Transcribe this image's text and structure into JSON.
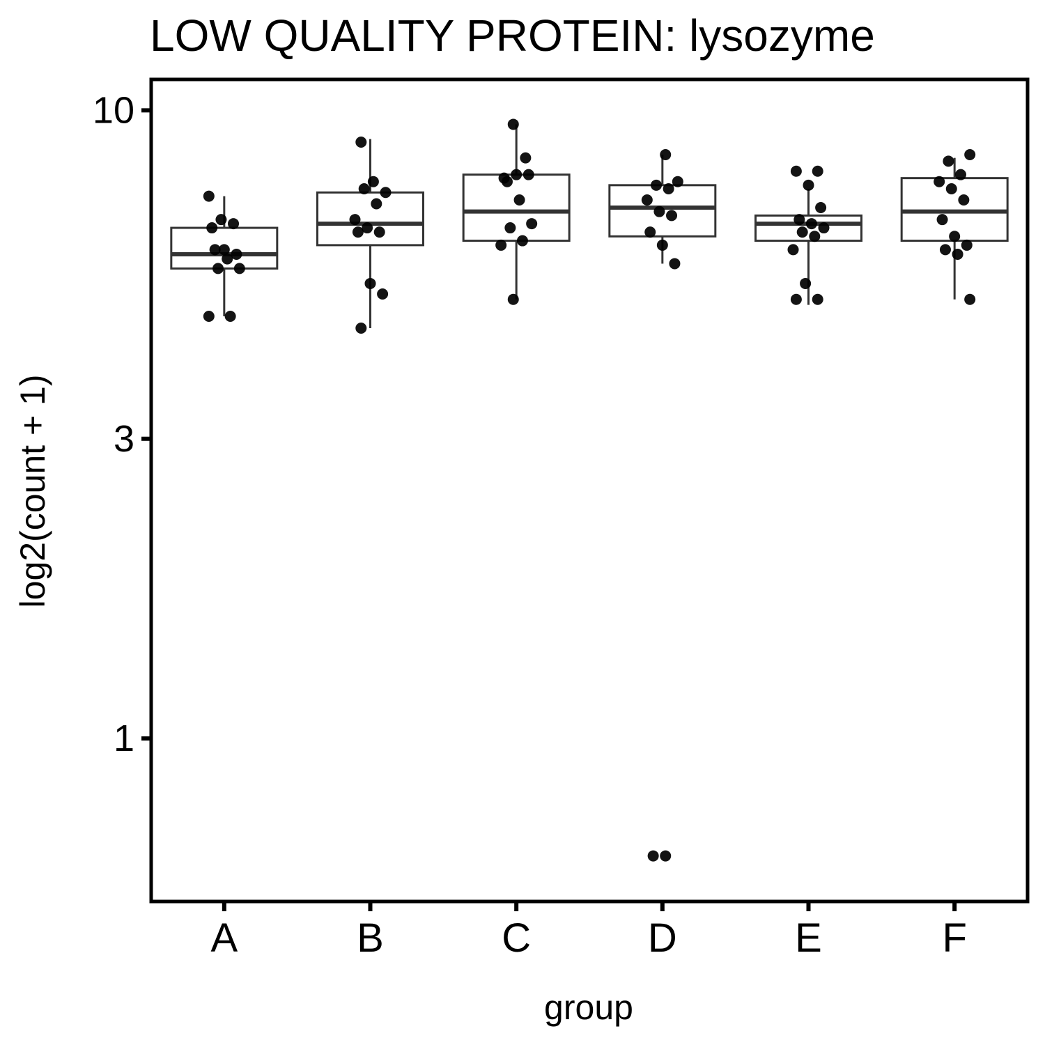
{
  "chart_data": {
    "type": "box",
    "title": "LOW QUALITY PROTEIN: lysozyme",
    "xlabel": "group",
    "ylabel": "log2(count + 1)",
    "y_scale": "log10",
    "ylim": [
      0.55,
      11.2
    ],
    "y_ticks": [
      1,
      3,
      10
    ],
    "y_tick_labels": [
      "1",
      "3",
      "10"
    ],
    "categories": [
      "A",
      "B",
      "C",
      "D",
      "E",
      "F"
    ],
    "grid": false,
    "legend": "none",
    "boxes": [
      {
        "group": "A",
        "whisker_low": 4.7,
        "q1": 5.6,
        "median": 5.9,
        "q3": 6.5,
        "whisker_high": 7.3
      },
      {
        "group": "B",
        "whisker_low": 4.5,
        "q1": 6.1,
        "median": 6.6,
        "q3": 7.4,
        "whisker_high": 9.0
      },
      {
        "group": "C",
        "whisker_low": 5.0,
        "q1": 6.2,
        "median": 6.9,
        "q3": 7.9,
        "whisker_high": 9.5
      },
      {
        "group": "D",
        "whisker_low": 5.7,
        "q1": 6.3,
        "median": 7.0,
        "q3": 7.6,
        "whisker_high": 8.5
      },
      {
        "group": "E",
        "whisker_low": 4.9,
        "q1": 6.2,
        "median": 6.6,
        "q3": 6.8,
        "whisker_high": 7.5
      },
      {
        "group": "F",
        "whisker_low": 5.0,
        "q1": 6.2,
        "median": 6.9,
        "q3": 7.8,
        "whisker_high": 8.4
      }
    ],
    "points": [
      {
        "group": "A",
        "values": [
          7.3,
          6.7,
          6.6,
          6.5,
          6.0,
          5.9,
          6.0,
          5.8,
          5.6,
          5.6,
          4.7,
          4.7
        ]
      },
      {
        "group": "B",
        "values": [
          8.9,
          7.7,
          7.4,
          7.5,
          7.1,
          6.7,
          6.5,
          6.4,
          6.4,
          5.3,
          5.1,
          4.5
        ]
      },
      {
        "group": "C",
        "values": [
          9.5,
          8.4,
          7.8,
          7.9,
          7.9,
          7.7,
          7.2,
          6.6,
          6.5,
          6.2,
          6.1,
          5.0
        ]
      },
      {
        "group": "D",
        "values": [
          8.5,
          7.7,
          7.6,
          7.5,
          7.2,
          6.9,
          6.8,
          6.4,
          6.1,
          5.7,
          0.65,
          0.65
        ]
      },
      {
        "group": "E",
        "values": [
          8.0,
          8.0,
          7.6,
          7.0,
          6.7,
          6.6,
          6.5,
          6.4,
          6.3,
          6.0,
          5.3,
          5.0,
          5.0
        ]
      },
      {
        "group": "F",
        "values": [
          8.5,
          8.3,
          7.9,
          7.7,
          7.5,
          7.2,
          6.7,
          6.3,
          6.1,
          6.0,
          5.9,
          5.0
        ]
      }
    ]
  }
}
